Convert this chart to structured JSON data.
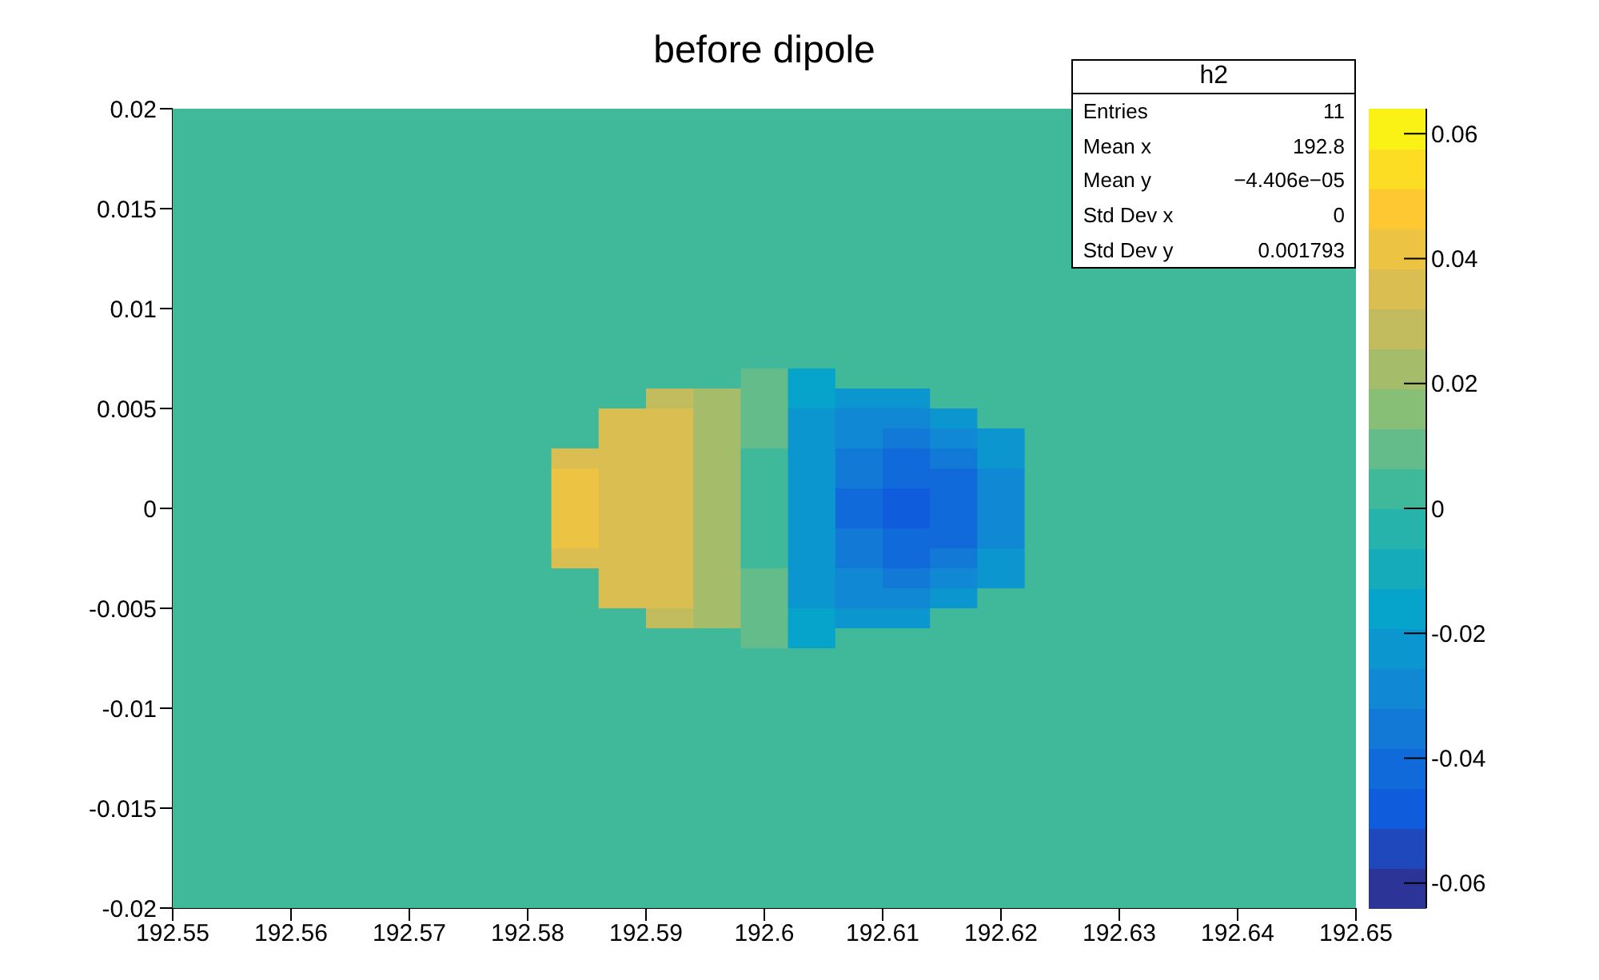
{
  "chart_data": {
    "type": "heatmap",
    "title": "before dipole",
    "xlim": [
      192.55,
      192.65
    ],
    "xticks": [
      192.55,
      192.56,
      192.57,
      192.58,
      192.59,
      192.6,
      192.61,
      192.62,
      192.63,
      192.64,
      192.65
    ],
    "ylim": [
      -0.02,
      0.02
    ],
    "yticks": [
      -0.02,
      -0.015,
      -0.01,
      -0.005,
      0,
      0.005,
      0.01,
      0.015,
      0.02
    ],
    "clim": [
      -0.064,
      0.064
    ],
    "cticks": [
      -0.06,
      -0.04,
      -0.02,
      0,
      0.02,
      0.04,
      0.06
    ],
    "cells": [
      [
        0,
        0,
        0,
        0,
        0,
        0,
        0,
        0,
        0,
        0,
        0,
        0,
        0,
        0,
        0,
        0,
        0,
        0,
        0,
        null,
        null,
        null,
        null,
        null,
        null
      ],
      [
        0,
        0,
        0,
        0,
        0,
        0,
        0,
        0,
        0,
        0,
        0,
        0,
        0,
        0,
        0,
        0,
        0,
        0,
        0,
        null,
        null,
        null,
        null,
        null,
        null
      ],
      [
        0,
        0,
        0,
        0,
        0,
        0,
        0,
        0,
        0,
        0,
        0,
        0,
        0,
        0,
        0,
        0,
        0,
        0,
        0,
        null,
        null,
        null,
        null,
        null,
        null
      ],
      [
        0,
        0,
        0,
        0,
        0,
        0,
        0,
        0,
        0,
        0,
        0,
        0,
        0,
        0,
        0,
        0,
        0,
        0,
        0,
        null,
        null,
        null,
        null,
        null,
        null
      ],
      [
        0,
        0,
        0,
        0,
        0,
        0,
        0,
        0,
        0,
        0,
        0,
        0,
        0,
        0,
        0,
        0,
        0,
        0,
        0,
        null,
        null,
        null,
        null,
        null,
        null
      ],
      [
        0,
        0,
        0,
        0,
        0,
        0,
        0,
        0,
        0,
        0,
        0,
        0,
        0,
        0,
        0,
        0,
        0,
        0,
        0,
        null,
        null,
        null,
        null,
        null,
        null
      ],
      [
        0,
        0,
        0,
        0,
        0,
        0,
        0,
        0,
        0,
        0,
        0,
        0,
        0,
        0,
        0,
        0,
        0,
        0,
        0,
        null,
        null,
        null,
        null,
        null,
        null
      ],
      [
        0,
        0,
        0,
        0,
        0,
        0,
        0,
        0,
        0,
        0,
        0,
        0,
        0,
        0,
        0,
        0,
        0,
        0,
        0,
        null,
        null,
        null,
        null,
        null,
        null
      ],
      [
        0,
        0,
        0,
        0,
        0,
        0,
        0,
        0,
        0,
        0,
        0,
        0,
        0,
        0,
        0,
        0,
        0,
        0,
        0,
        0,
        0,
        0,
        0,
        0,
        0
      ],
      [
        0,
        0,
        0,
        0,
        0,
        0,
        0,
        0,
        0,
        0,
        0,
        0,
        0,
        0,
        0,
        0,
        0,
        0,
        0,
        0,
        0,
        0,
        0,
        0,
        0
      ],
      [
        0,
        0,
        0,
        0,
        0,
        0,
        0,
        0,
        0,
        0,
        0,
        0,
        0,
        0,
        0,
        0,
        0,
        0,
        0,
        0,
        0,
        0,
        0,
        0,
        0
      ],
      [
        0,
        0,
        0,
        0,
        0,
        0,
        0,
        0,
        0,
        0,
        0,
        0,
        0,
        0,
        0,
        0,
        0,
        0,
        0,
        0,
        0,
        0,
        0,
        0,
        0
      ],
      [
        0,
        0,
        0,
        0,
        0,
        0,
        0,
        0,
        0,
        0,
        0,
        0,
        0,
        0,
        0,
        0,
        0,
        0,
        0,
        0,
        0,
        0,
        0,
        0,
        0
      ],
      [
        0,
        0,
        0,
        0,
        0,
        0,
        0,
        0,
        0,
        0,
        0,
        0,
        0.01,
        -0.015,
        0,
        0,
        0,
        0,
        0,
        0,
        0,
        0,
        0,
        0,
        0
      ],
      [
        0,
        0,
        0,
        0,
        0,
        0,
        0,
        0,
        0,
        0,
        0.03,
        0.02,
        0.01,
        -0.018,
        -0.022,
        -0.022,
        0,
        0,
        0,
        0,
        0,
        0,
        0,
        0,
        0
      ],
      [
        0,
        0,
        0,
        0,
        0,
        0,
        0,
        0,
        0,
        0.033,
        0.032,
        0.02,
        0.008,
        -0.02,
        -0.028,
        -0.028,
        -0.022,
        0,
        0,
        0,
        0,
        0,
        0,
        0,
        0
      ],
      [
        0,
        0,
        0,
        0,
        0,
        0,
        0,
        0,
        0,
        0.036,
        0.034,
        0.02,
        0.008,
        -0.022,
        -0.032,
        -0.034,
        -0.03,
        -0.02,
        0,
        0,
        0,
        0,
        0,
        0,
        0
      ],
      [
        0,
        0,
        0,
        0,
        0,
        0,
        0,
        0,
        0.038,
        0.037,
        0.034,
        0.02,
        0.006,
        -0.024,
        -0.036,
        -0.04,
        -0.036,
        -0.024,
        0,
        0,
        0,
        0,
        0,
        0,
        0
      ],
      [
        0,
        0,
        0,
        0,
        0,
        0,
        0,
        0,
        0.04,
        0.038,
        0.034,
        0.02,
        0.006,
        -0.025,
        -0.038,
        -0.043,
        -0.04,
        -0.026,
        0,
        0,
        0,
        0,
        0,
        0,
        0
      ],
      [
        0,
        0,
        0,
        0,
        0,
        0,
        0,
        0,
        0.04,
        0.038,
        0.034,
        0.02,
        0.006,
        -0.025,
        -0.039,
        -0.045,
        -0.04,
        -0.027,
        0,
        0,
        0,
        0,
        0,
        0,
        0
      ],
      [
        0,
        0,
        0,
        0,
        0,
        0,
        0,
        0,
        0.04,
        0.038,
        0.034,
        0.02,
        0.006,
        -0.025,
        -0.039,
        -0.045,
        -0.04,
        -0.027,
        0,
        0,
        0,
        0,
        0,
        0,
        0
      ],
      [
        0,
        0,
        0,
        0,
        0,
        0,
        0,
        0,
        0.04,
        0.038,
        0.034,
        0.02,
        0.006,
        -0.025,
        -0.038,
        -0.043,
        -0.04,
        -0.026,
        0,
        0,
        0,
        0,
        0,
        0,
        0
      ],
      [
        0,
        0,
        0,
        0,
        0,
        0,
        0,
        0,
        0.038,
        0.037,
        0.034,
        0.02,
        0.006,
        -0.024,
        -0.036,
        -0.04,
        -0.036,
        -0.024,
        0,
        0,
        0,
        0,
        0,
        0,
        0
      ],
      [
        0,
        0,
        0,
        0,
        0,
        0,
        0,
        0,
        0,
        0.036,
        0.034,
        0.02,
        0.008,
        -0.022,
        -0.032,
        -0.034,
        -0.03,
        -0.02,
        0,
        0,
        0,
        0,
        0,
        0,
        0
      ],
      [
        0,
        0,
        0,
        0,
        0,
        0,
        0,
        0,
        0,
        0.033,
        0.032,
        0.02,
        0.008,
        -0.02,
        -0.028,
        -0.028,
        -0.022,
        0,
        0,
        0,
        0,
        0,
        0,
        0,
        0
      ],
      [
        0,
        0,
        0,
        0,
        0,
        0,
        0,
        0,
        0,
        0,
        0.03,
        0.02,
        0.01,
        -0.018,
        -0.022,
        -0.022,
        0,
        0,
        0,
        0,
        0,
        0,
        0,
        0,
        0
      ],
      [
        0,
        0,
        0,
        0,
        0,
        0,
        0,
        0,
        0,
        0,
        0,
        0,
        0.01,
        -0.015,
        0,
        0,
        0,
        0,
        0,
        0,
        0,
        0,
        0,
        0,
        0
      ],
      [
        0,
        0,
        0,
        0,
        0,
        0,
        0,
        0,
        0,
        0,
        0,
        0,
        0,
        0,
        0,
        0,
        0,
        0,
        0,
        0,
        0,
        0,
        0,
        0,
        0
      ],
      [
        0,
        0,
        0,
        0,
        0,
        0,
        0,
        0,
        0,
        0,
        0,
        0,
        0,
        0,
        0,
        0,
        0,
        0,
        0,
        0,
        0,
        0,
        0,
        0,
        0
      ],
      [
        0,
        0,
        0,
        0,
        0,
        0,
        0,
        0,
        0,
        0,
        0,
        0,
        0,
        0,
        0,
        0,
        0,
        0,
        0,
        0,
        0,
        0,
        0,
        0,
        0
      ],
      [
        0,
        0,
        0,
        0,
        0,
        0,
        0,
        0,
        0,
        0,
        0,
        0,
        0,
        0,
        0,
        0,
        0,
        0,
        0,
        0,
        0,
        0,
        0,
        0,
        0
      ],
      [
        0,
        0,
        0,
        0,
        0,
        0,
        0,
        0,
        0,
        0,
        0,
        0,
        0,
        0,
        0,
        0,
        0,
        0,
        0,
        0,
        0,
        0,
        0,
        0,
        0
      ],
      [
        0,
        0,
        0,
        0,
        0,
        0,
        0,
        0,
        0,
        0,
        0,
        0,
        0,
        0,
        0,
        0,
        0,
        0,
        0,
        0,
        0,
        0,
        0,
        0,
        0
      ],
      [
        0,
        0,
        0,
        0,
        0,
        0,
        0,
        0,
        0,
        0,
        0,
        0,
        0,
        0,
        0,
        0,
        0,
        0,
        0,
        0,
        0,
        0,
        0,
        0,
        0
      ],
      [
        0,
        0,
        0,
        0,
        0,
        0,
        0,
        0,
        0,
        0,
        0,
        0,
        0,
        0,
        0,
        0,
        0,
        0,
        0,
        0,
        0,
        0,
        0,
        0,
        0
      ],
      [
        0,
        0,
        0,
        0,
        0,
        0,
        0,
        0,
        0,
        0,
        0,
        0,
        0,
        0,
        0,
        0,
        0,
        0,
        0,
        0,
        0,
        0,
        0,
        0,
        0
      ],
      [
        0,
        0,
        0,
        0,
        0,
        0,
        0,
        0,
        0,
        0,
        0,
        0,
        0,
        0,
        0,
        0,
        0,
        0,
        0,
        0,
        0,
        0,
        0,
        0,
        0
      ],
      [
        0,
        0,
        0,
        0,
        0,
        0,
        0,
        0,
        0,
        0,
        0,
        0,
        0,
        0,
        0,
        0,
        0,
        0,
        0,
        0,
        0,
        0,
        0,
        0,
        0
      ],
      [
        0,
        0,
        0,
        0,
        0,
        0,
        0,
        0,
        0,
        0,
        0,
        0,
        0,
        0,
        0,
        0,
        0,
        0,
        0,
        0,
        0,
        0,
        0,
        0,
        0
      ],
      [
        0,
        0,
        0,
        0,
        0,
        0,
        0,
        0,
        0,
        0,
        0,
        0,
        0,
        0,
        0,
        0,
        0,
        0,
        0,
        0,
        0,
        0,
        0,
        0,
        0
      ]
    ],
    "annotations": [
      "h2",
      "Entries",
      "11",
      "Mean x",
      "192.8",
      "Mean y",
      "−4.406e−05",
      "Std Dev x",
      "0",
      "Std Dev y",
      "0.001793"
    ]
  }
}
